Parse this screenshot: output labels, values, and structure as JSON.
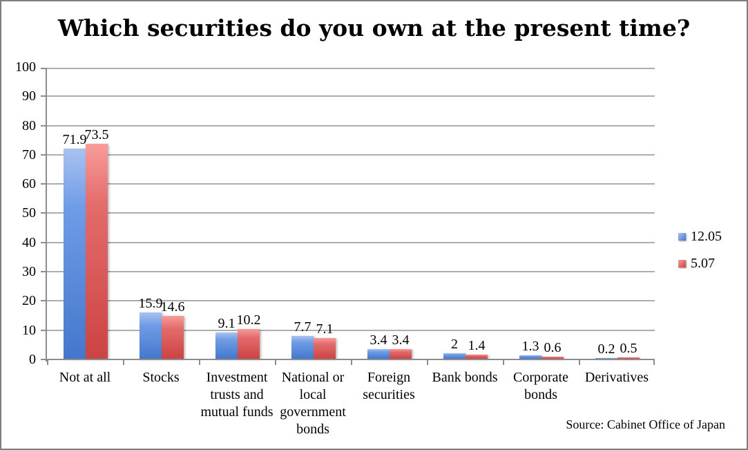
{
  "title": "Which securities do you own at the present time?",
  "source": "Source: Cabinet Office of Japan",
  "colors": {
    "gridline": "#adadad",
    "axis": "#8c8c8c",
    "frame_border": "#7e7e7e",
    "series_blue": "#4477cc",
    "series_red": "#cc4343",
    "text": "#000000"
  },
  "chart_data": {
    "type": "bar",
    "title": "Which securities do you own at the present time?",
    "categories": [
      "Not at all",
      "Stocks",
      "Investment trusts and mutual funds",
      "National or local government bonds",
      "Foreign securities",
      "Bank bonds",
      "Corporate bonds",
      "Derivatives"
    ],
    "series": [
      {
        "name": "12.05",
        "color_top": "#a8c2f0",
        "color_mid": "#6f9ce6",
        "color_bottom": "#4477cc",
        "values": [
          71.9,
          15.9,
          9.1,
          7.7,
          3.4,
          2,
          1.3,
          0.2
        ]
      },
      {
        "name": "5.07",
        "color_top": "#f89c9a",
        "color_mid": "#e46c6c",
        "color_bottom": "#cc4343",
        "values": [
          73.5,
          14.6,
          10.2,
          7.1,
          3.4,
          1.4,
          0.6,
          0.5
        ]
      }
    ],
    "xlabel": "",
    "ylabel": "",
    "ylim": [
      0,
      100
    ],
    "ytick_step": 10,
    "grid": "horizontal",
    "legend_position": "right",
    "annotation": "Source: Cabinet Office of Japan"
  }
}
